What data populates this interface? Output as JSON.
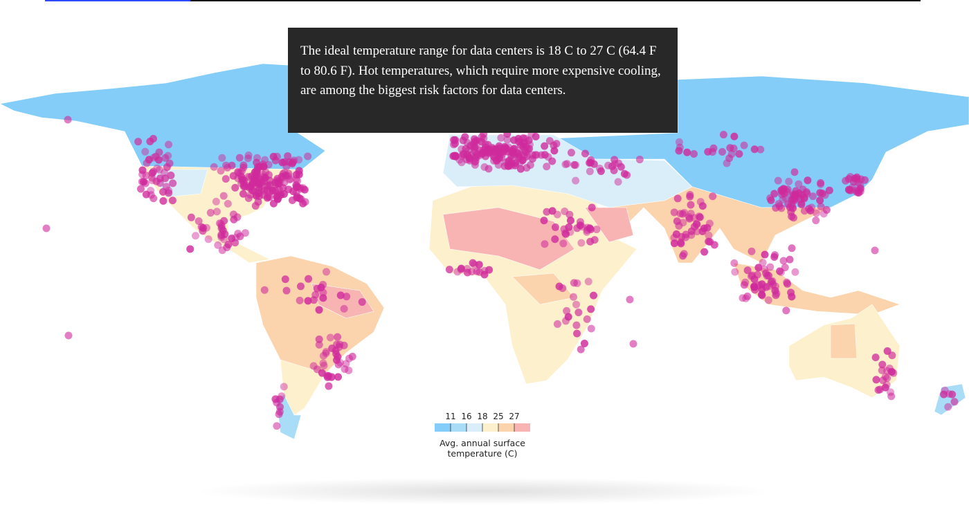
{
  "annotation": "The ideal temperature range for data centers is 18 C to 27 C (64.4 F to 80.6 F). Hot temperatures, which require more expensive cooling, are among the biggest risk factors for data centers.",
  "legend": {
    "ticks": [
      11,
      16,
      18,
      25,
      27
    ],
    "colors": [
      "#84cdf8",
      "#a9dcf6",
      "#d9eef8",
      "#fdf0cc",
      "#fbd3ac",
      "#f8b3b3"
    ],
    "title": "Avg. annual surface temperature (C)"
  },
  "dot_color": "#cf2a9c"
}
